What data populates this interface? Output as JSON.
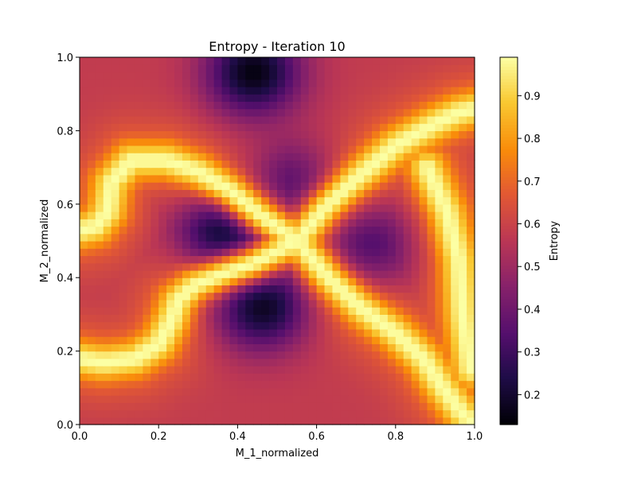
{
  "chart_data": {
    "type": "heatmap",
    "title": "Entropy - Iteration 10",
    "xlabel": "M_1_normalized",
    "ylabel": "M_2_normalized",
    "xlim": [
      0.0,
      1.0
    ],
    "ylim": [
      0.0,
      1.0
    ],
    "x_ticks": [
      "0.0",
      "0.2",
      "0.4",
      "0.6",
      "0.8",
      "1.0"
    ],
    "y_ticks": [
      "0.0",
      "0.2",
      "0.4",
      "0.6",
      "0.8",
      "1.0"
    ],
    "colorbar": {
      "label": "Entropy",
      "colormap": "inferno",
      "range": [
        0.13,
        0.99
      ],
      "ticks": [
        "0.2",
        "0.3",
        "0.4",
        "0.5",
        "0.6",
        "0.7",
        "0.8",
        "0.9"
      ]
    },
    "grid_size": [
      50,
      50
    ],
    "features": {
      "min_regions": [
        {
          "x": 0.46,
          "y": 0.33,
          "value": 0.14
        },
        {
          "x": 0.37,
          "y": 0.52,
          "value": 0.16
        },
        {
          "x": 0.44,
          "y": 0.96,
          "value": 0.15
        },
        {
          "x": 0.73,
          "y": 0.49,
          "value": 0.32
        },
        {
          "x": 0.54,
          "y": 0.65,
          "value": 0.33
        }
      ],
      "max_ridges": [
        [
          [
            0.55,
            0.5
          ],
          [
            0.62,
            0.59
          ],
          [
            0.7,
            0.67
          ],
          [
            0.8,
            0.76
          ],
          [
            0.9,
            0.82
          ],
          [
            0.96,
            0.85
          ],
          [
            1.0,
            0.86
          ]
        ],
        [
          [
            0.55,
            0.5
          ],
          [
            0.63,
            0.4
          ],
          [
            0.71,
            0.32
          ],
          [
            0.8,
            0.25
          ],
          [
            0.87,
            0.18
          ],
          [
            0.92,
            0.1
          ],
          [
            0.97,
            0.03
          ],
          [
            1.0,
            0.0
          ]
        ],
        [
          [
            0.55,
            0.5
          ],
          [
            0.46,
            0.57
          ],
          [
            0.38,
            0.64
          ],
          [
            0.3,
            0.69
          ],
          [
            0.22,
            0.72
          ],
          [
            0.13,
            0.72
          ],
          [
            0.08,
            0.66
          ],
          [
            0.07,
            0.58
          ],
          [
            0.04,
            0.54
          ],
          [
            0.0,
            0.53
          ]
        ],
        [
          [
            0.55,
            0.5
          ],
          [
            0.44,
            0.44
          ],
          [
            0.36,
            0.41
          ],
          [
            0.29,
            0.38
          ],
          [
            0.25,
            0.34
          ],
          [
            0.23,
            0.28
          ],
          [
            0.2,
            0.22
          ],
          [
            0.14,
            0.18
          ],
          [
            0.06,
            0.17
          ],
          [
            0.0,
            0.18
          ]
        ],
        [
          [
            0.88,
            0.7
          ],
          [
            0.93,
            0.58
          ],
          [
            0.96,
            0.45
          ],
          [
            0.97,
            0.3
          ],
          [
            0.99,
            0.15
          ]
        ]
      ],
      "background_value": 0.58
    }
  }
}
